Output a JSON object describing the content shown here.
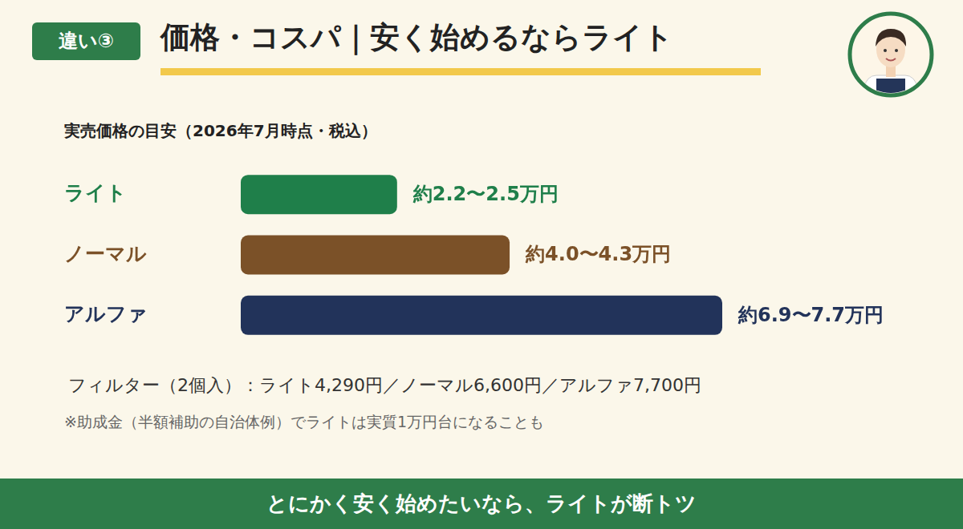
{
  "header": {
    "badge": "違い③",
    "title": "価格・コスパ｜安く始めるならライト"
  },
  "chart_data": {
    "type": "bar",
    "orientation": "horizontal",
    "title": "実売価格の目安（2026年7月時点・税込）",
    "categories": [
      "ライト",
      "ノーマル",
      "アルファ"
    ],
    "values": [
      2.5,
      4.3,
      7.7
    ],
    "value_labels": [
      "約2.2〜2.5万円",
      "約4.0〜4.3万円",
      "約6.9〜7.7万円"
    ],
    "colors": [
      "#1f7f4a",
      "#7b5128",
      "#22335a"
    ],
    "xlim": [
      0,
      7.7
    ],
    "grid": false,
    "tick_labels": "y",
    "data_labels": true
  },
  "notes": [
    "フィルター（2個入）：ライト4,290円／ノーマル6,600円／アルファ7,700円",
    "※助成金（半額補助の自治体例）でライトは実質1万円台になることも"
  ],
  "footer": "とにかく安く始めたいなら、ライトが断トツ"
}
